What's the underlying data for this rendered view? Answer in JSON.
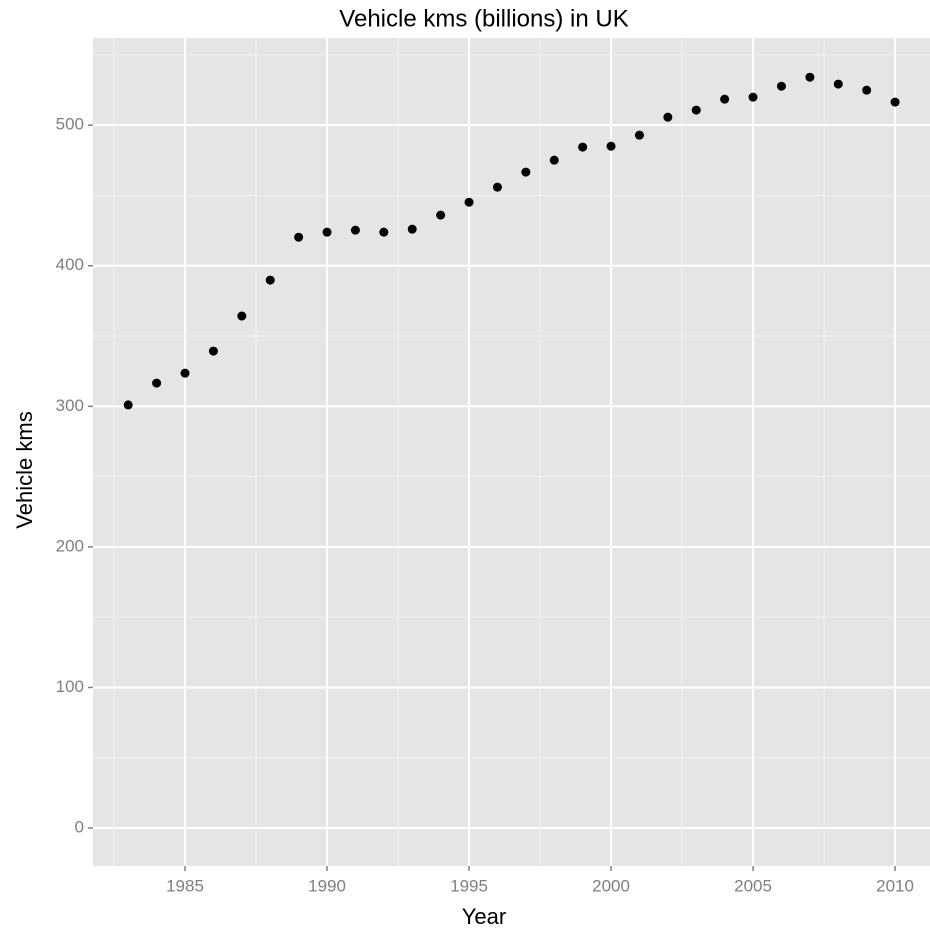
{
  "chart_data": {
    "type": "scatter",
    "title": "Vehicle kms (billions) in UK",
    "x_label": "Year",
    "y_label": "Vehicle kms",
    "series": [
      {
        "name": "Vehicle kms",
        "color": "#000000",
        "x": [
          1983,
          1984,
          1985,
          1986,
          1987,
          1988,
          1989,
          1990,
          1991,
          1992,
          1993,
          1994,
          1995,
          1996,
          1997,
          1998,
          1999,
          2000,
          2001,
          2002,
          2003,
          2004,
          2005,
          2006,
          2007,
          2008,
          2009,
          2010
        ],
        "values": [
          301,
          316.5,
          323.6,
          339.3,
          364.2,
          389.8,
          420.3,
          423.9,
          425.3,
          423.9,
          426,
          436,
          445.2,
          455.9,
          466.6,
          475.1,
          484.4,
          485,
          492.9,
          505.7,
          510.7,
          518.5,
          519.9,
          527.7,
          534.1,
          529.2,
          524.9,
          516.4
        ]
      }
    ],
    "xlim": [
      1981.76,
      2011.23
    ],
    "xticks": [
      1985,
      1990,
      1995,
      2000,
      2005,
      2010
    ],
    "ylim": [
      -27,
      562
    ],
    "yticks": [
      0,
      100,
      200,
      300,
      400,
      500
    ],
    "grid": true
  }
}
